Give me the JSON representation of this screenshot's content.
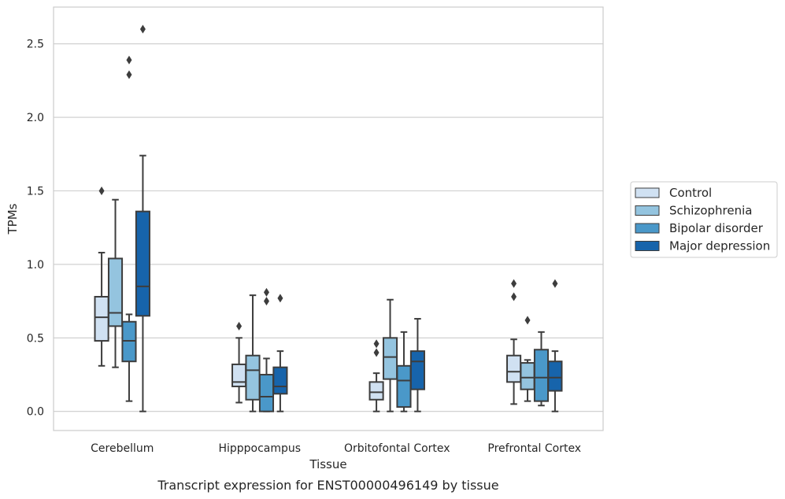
{
  "chart_data": {
    "type": "box",
    "caption": "Transcript expression for ENST00000496149 by tissue",
    "xlabel": "Tissue",
    "ylabel": "TPMs",
    "ylim": [
      -0.13,
      2.75
    ],
    "yticks": [
      "0.0",
      "0.5",
      "1.0",
      "1.5",
      "2.0",
      "2.5"
    ],
    "grid": true,
    "legend_position": "right",
    "categories": [
      "Cerebellum",
      "Hipppocampus",
      "Orbitofontal Cortex",
      "Prefrontal Cortex"
    ],
    "series": [
      {
        "name": "Control",
        "color": "#d0e1f2",
        "boxes": [
          {
            "whisker_low": 0.31,
            "q1": 0.48,
            "median": 0.64,
            "q3": 0.78,
            "whisker_high": 1.08,
            "outliers": [
              1.5
            ]
          },
          {
            "whisker_low": 0.06,
            "q1": 0.17,
            "median": 0.2,
            "q3": 0.32,
            "whisker_high": 0.5,
            "outliers": [
              0.58
            ]
          },
          {
            "whisker_low": 0.0,
            "q1": 0.08,
            "median": 0.13,
            "q3": 0.2,
            "whisker_high": 0.26,
            "outliers": [
              0.4,
              0.46
            ]
          },
          {
            "whisker_low": 0.05,
            "q1": 0.2,
            "median": 0.27,
            "q3": 0.38,
            "whisker_high": 0.49,
            "outliers": [
              0.78,
              0.87
            ]
          }
        ]
      },
      {
        "name": "Schizophrenia",
        "color": "#94c4df",
        "boxes": [
          {
            "whisker_low": 0.3,
            "q1": 0.58,
            "median": 0.67,
            "q3": 1.04,
            "whisker_high": 1.44,
            "outliers": []
          },
          {
            "whisker_low": 0.0,
            "q1": 0.08,
            "median": 0.28,
            "q3": 0.38,
            "whisker_high": 0.79,
            "outliers": []
          },
          {
            "whisker_low": 0.0,
            "q1": 0.22,
            "median": 0.37,
            "q3": 0.5,
            "whisker_high": 0.76,
            "outliers": []
          },
          {
            "whisker_low": 0.07,
            "q1": 0.15,
            "median": 0.23,
            "q3": 0.33,
            "whisker_high": 0.35,
            "outliers": [
              0.62
            ]
          }
        ]
      },
      {
        "name": "Bipolar disorder",
        "color": "#4a98c9",
        "boxes": [
          {
            "whisker_low": 0.07,
            "q1": 0.34,
            "median": 0.48,
            "q3": 0.61,
            "whisker_high": 0.66,
            "outliers": [
              2.29,
              2.39
            ]
          },
          {
            "whisker_low": 0.0,
            "q1": 0.0,
            "median": 0.1,
            "q3": 0.25,
            "whisker_high": 0.36,
            "outliers": [
              0.75,
              0.81
            ]
          },
          {
            "whisker_low": 0.0,
            "q1": 0.03,
            "median": 0.21,
            "q3": 0.31,
            "whisker_high": 0.54,
            "outliers": []
          },
          {
            "whisker_low": 0.04,
            "q1": 0.07,
            "median": 0.23,
            "q3": 0.42,
            "whisker_high": 0.54,
            "outliers": []
          }
        ]
      },
      {
        "name": "Major depression",
        "color": "#1764ab",
        "boxes": [
          {
            "whisker_low": 0.0,
            "q1": 0.65,
            "median": 0.85,
            "q3": 1.36,
            "whisker_high": 1.74,
            "outliers": [
              2.6
            ]
          },
          {
            "whisker_low": 0.0,
            "q1": 0.12,
            "median": 0.17,
            "q3": 0.3,
            "whisker_high": 0.41,
            "outliers": [
              0.77
            ]
          },
          {
            "whisker_low": 0.0,
            "q1": 0.15,
            "median": 0.34,
            "q3": 0.41,
            "whisker_high": 0.63,
            "outliers": []
          },
          {
            "whisker_low": 0.0,
            "q1": 0.14,
            "median": 0.23,
            "q3": 0.34,
            "whisker_high": 0.41,
            "outliers": [
              0.87
            ]
          }
        ]
      }
    ]
  }
}
